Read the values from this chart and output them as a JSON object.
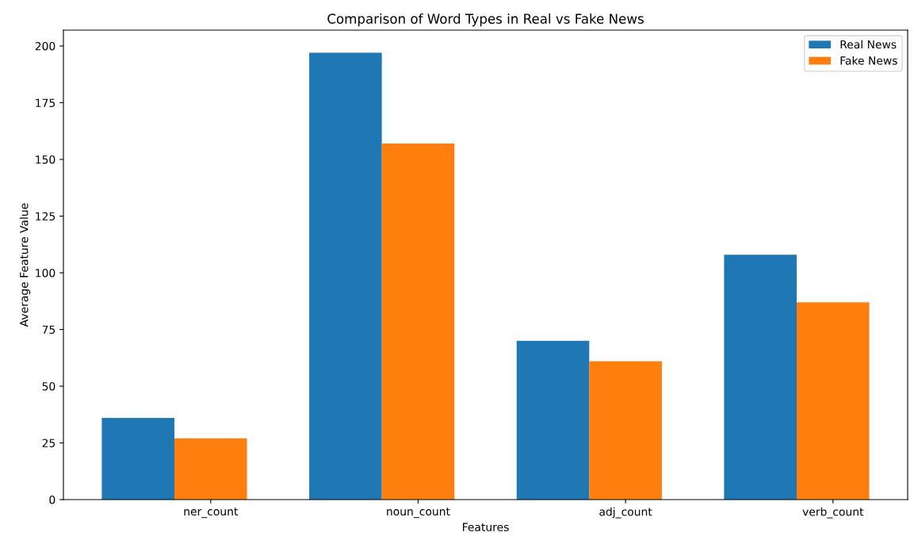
{
  "chart_data": {
    "type": "bar",
    "title": "Comparison of Word Types in Real vs Fake News",
    "xlabel": "Features",
    "ylabel": "Average Feature Value",
    "categories": [
      "ner_count",
      "noun_count",
      "adj_count",
      "verb_count"
    ],
    "series": [
      {
        "name": "Real News",
        "color": "#1f77b4",
        "values": [
          36,
          197,
          70,
          108
        ]
      },
      {
        "name": "Fake News",
        "color": "#ff7f0e",
        "values": [
          27,
          157,
          61,
          87
        ]
      }
    ],
    "ylim": [
      0,
      207
    ],
    "yticks": [
      0,
      25,
      50,
      75,
      100,
      125,
      150,
      175,
      200
    ],
    "grid": false,
    "legend": "top right"
  }
}
